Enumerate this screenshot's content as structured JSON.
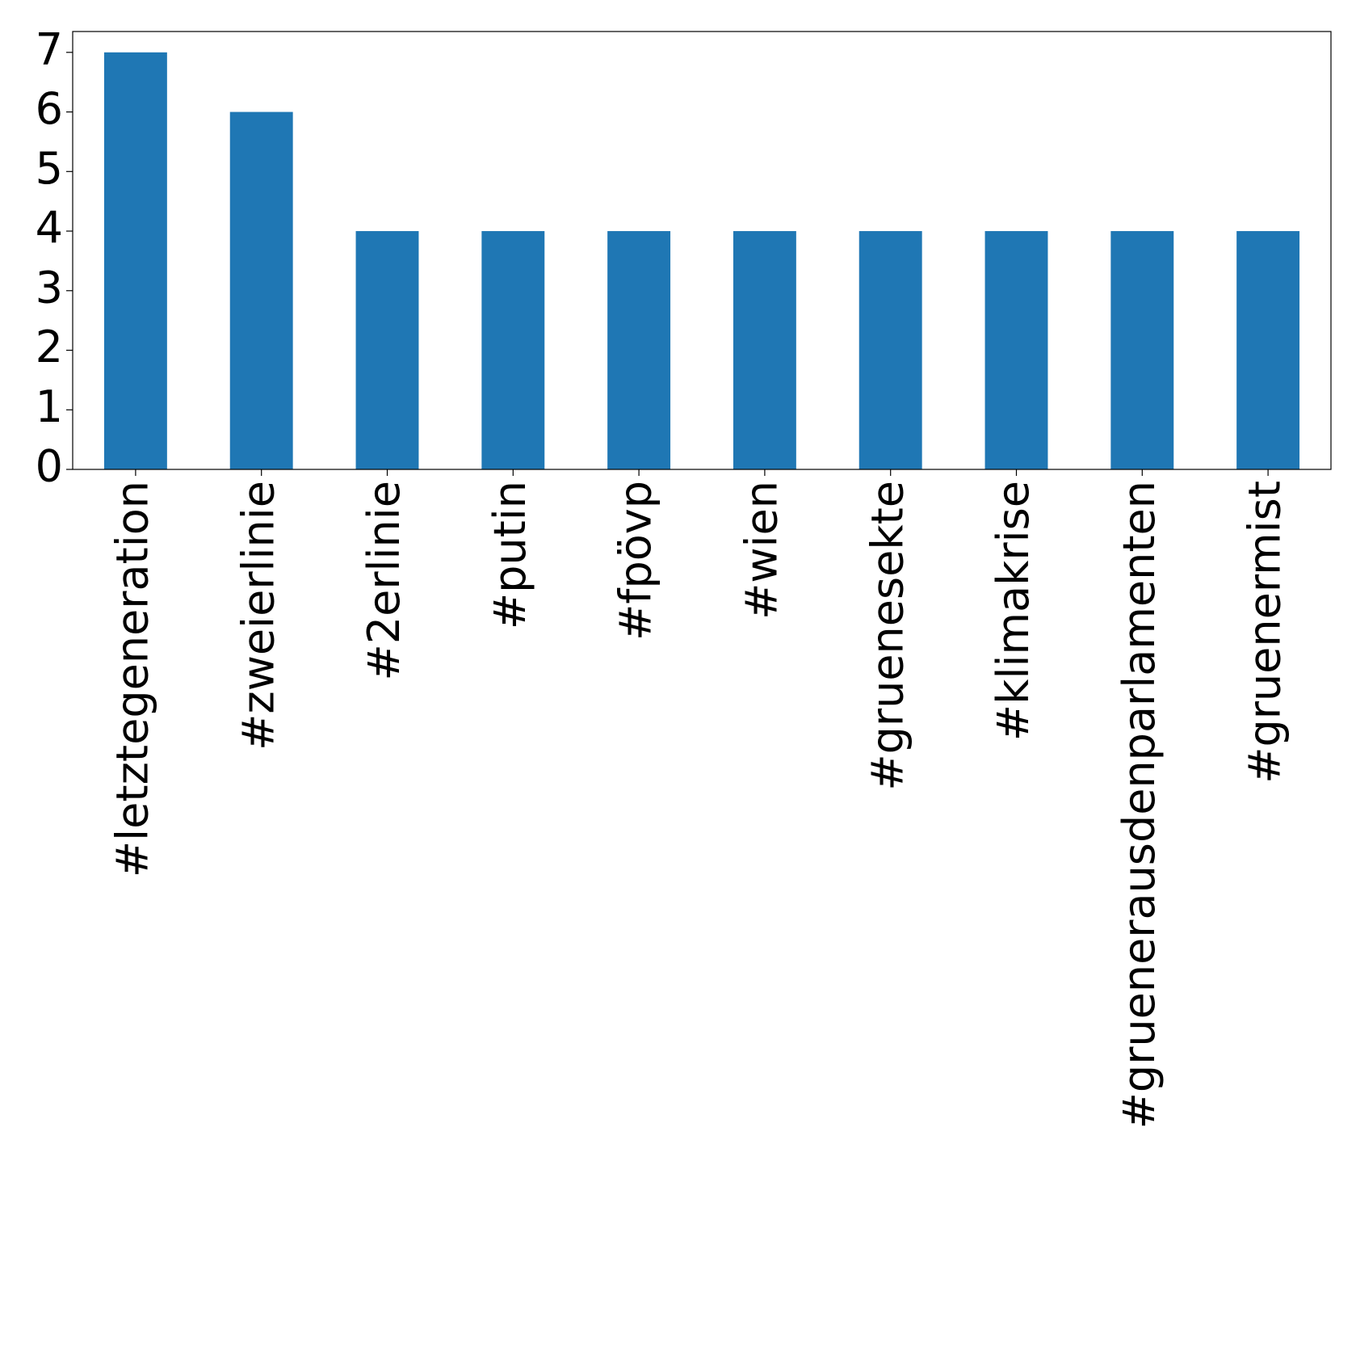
{
  "chart_data": {
    "type": "bar",
    "categories": [
      "#letztegeneration",
      "#zweierlinie",
      "#2erlinie",
      "#putin",
      "#fpövp",
      "#wien",
      "#gruenesekte",
      "#klimakrise",
      "#grueneraus­denparlamenten",
      "#gruenermist"
    ],
    "values": [
      7,
      6,
      4,
      4,
      4,
      4,
      4,
      4,
      4,
      4
    ],
    "color": "#1f77b4",
    "ylim": [
      0,
      7.35
    ],
    "yticks": [
      0,
      1,
      2,
      3,
      4,
      5,
      6,
      7
    ],
    "grid": false
  }
}
